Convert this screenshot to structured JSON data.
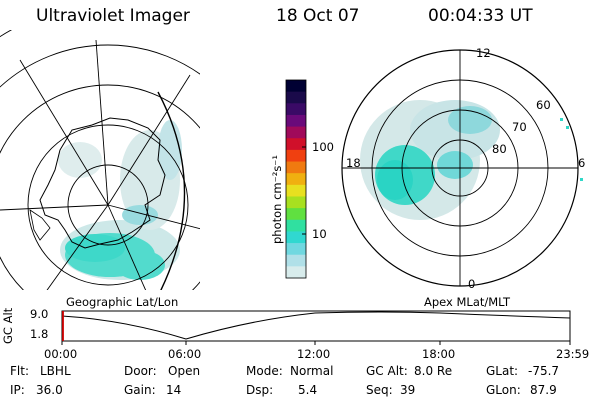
{
  "header": {
    "instrument": "Ultraviolet Imager",
    "date": "18 Oct 07",
    "time": "00:04:33 UT"
  },
  "geo_panel": {
    "label": "Geographic Lat/Lon"
  },
  "apex_panel": {
    "label": "Apex MLat/MLT",
    "mlt_labels": {
      "top": "12",
      "left": "18",
      "right": "6",
      "bottom": "0"
    },
    "lat_labels": [
      "60",
      "70",
      "80"
    ]
  },
  "colorbar": {
    "unit_label": "photon cm⁻²s⁻¹",
    "ticks": [
      "100",
      "10"
    ],
    "colors": [
      "#000033",
      "#1a0a4a",
      "#3a0a66",
      "#6a0a7a",
      "#a00a5a",
      "#d0102a",
      "#f04010",
      "#f07a10",
      "#f0b010",
      "#e8e020",
      "#a8e020",
      "#60e040",
      "#30e0a0",
      "#30d8d0",
      "#70d8e0",
      "#b0e0e8",
      "#d8ecec"
    ]
  },
  "altitude_plot": {
    "ylabel": "GC Alt",
    "yticks": [
      "9.0",
      "1.8"
    ],
    "xticks": [
      "00:00",
      "06:00",
      "12:00",
      "18:00",
      "23:59"
    ]
  },
  "status": {
    "flt_label": "Flt:",
    "flt_value": "LBHL",
    "ip_label": "IP:",
    "ip_value": "36.0",
    "door_label": "Door:",
    "door_value": "Open",
    "gain_label": "Gain:",
    "gain_value": "14",
    "mode_label": "Mode:",
    "mode_value": "Normal",
    "dsp_label": "Dsp:",
    "dsp_value": "5.4",
    "gcalt_label": "GC Alt:",
    "gcalt_value": "8.0 Re",
    "seq_label": "Seq:",
    "seq_value": "39",
    "glat_label": "GLat:",
    "glat_value": "-75.7",
    "glon_label": "GLon:",
    "glon_value": "87.9"
  }
}
